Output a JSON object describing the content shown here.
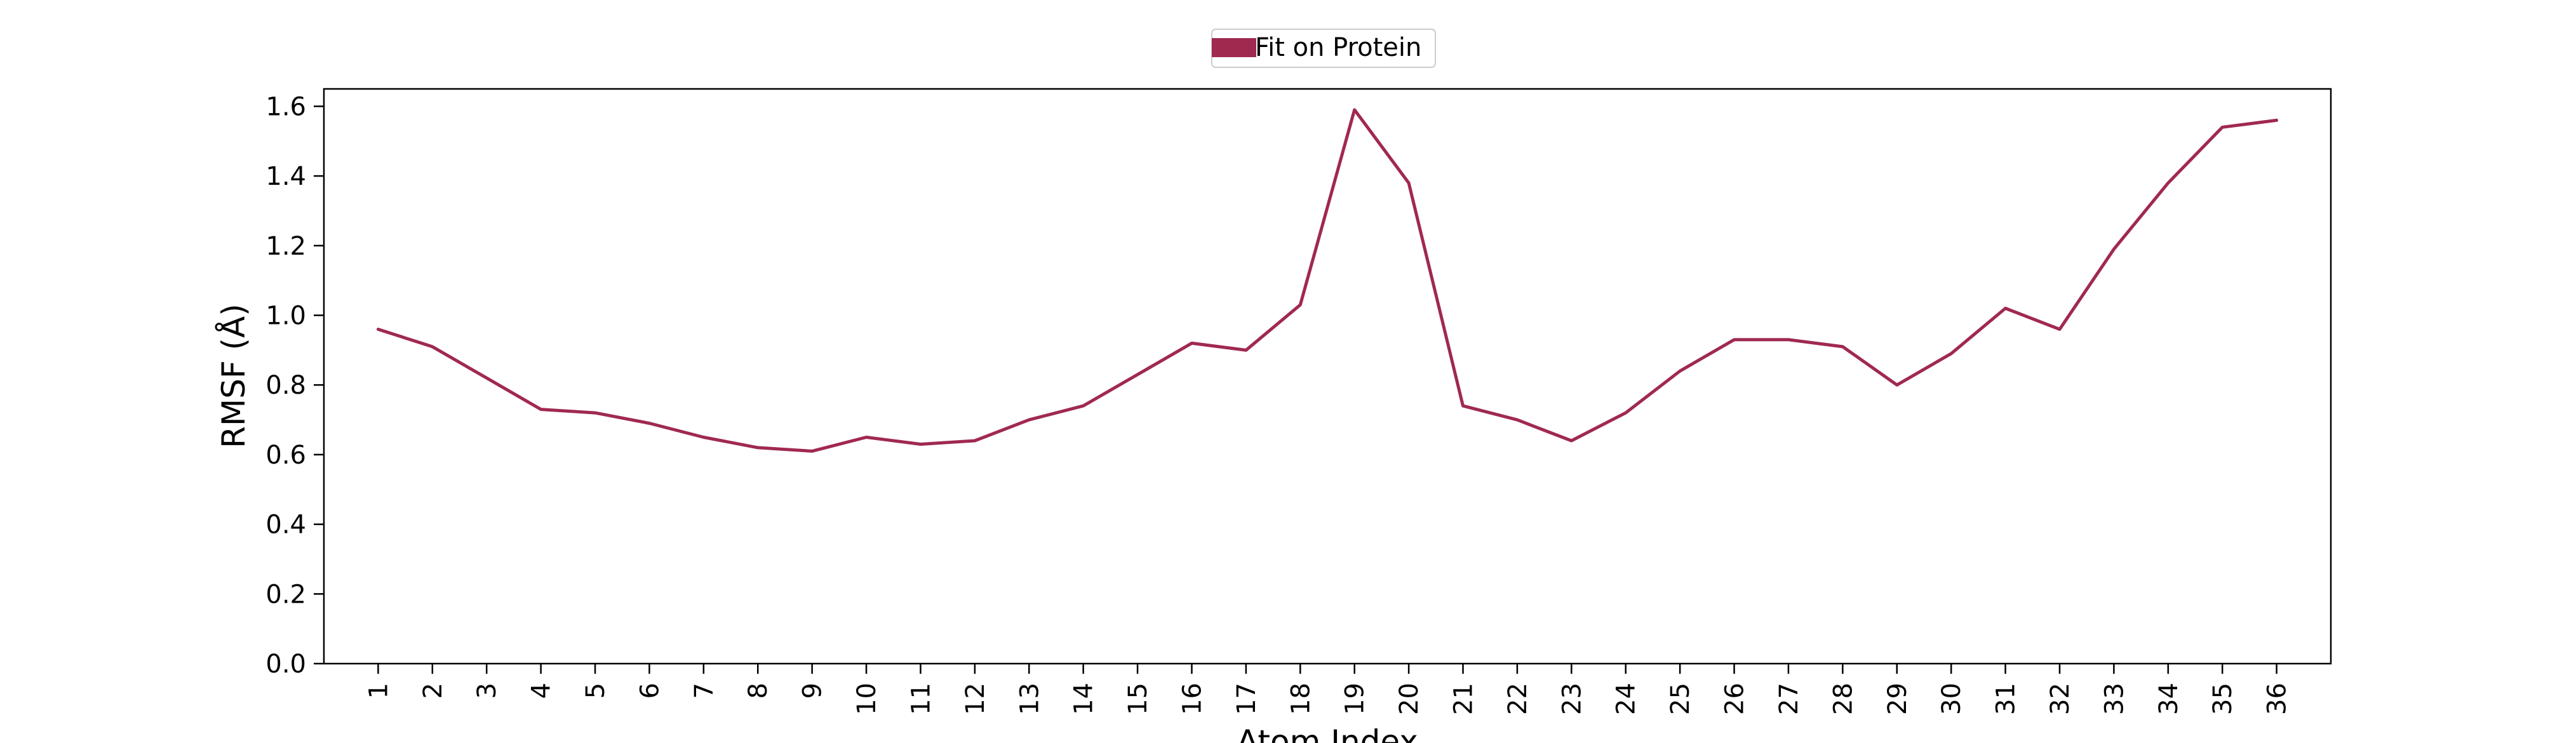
{
  "chart_data": {
    "type": "line",
    "xlabel": "Atom Index",
    "ylabel": "RMSF (Å)",
    "categories": [
      "1",
      "2",
      "3",
      "4",
      "5",
      "6",
      "7",
      "8",
      "9",
      "10",
      "11",
      "12",
      "13",
      "14",
      "15",
      "16",
      "17",
      "18",
      "19",
      "20",
      "21",
      "22",
      "23",
      "24",
      "25",
      "26",
      "27",
      "28",
      "29",
      "30",
      "31",
      "32",
      "33",
      "34",
      "35",
      "36"
    ],
    "x": [
      1,
      2,
      3,
      4,
      5,
      6,
      7,
      8,
      9,
      10,
      11,
      12,
      13,
      14,
      15,
      16,
      17,
      18,
      19,
      20,
      21,
      22,
      23,
      24,
      25,
      26,
      27,
      28,
      29,
      30,
      31,
      32,
      33,
      34,
      35,
      36
    ],
    "series": [
      {
        "name": "Fit on Protein",
        "color": "#a0294f",
        "values": [
          0.96,
          0.91,
          0.82,
          0.73,
          0.72,
          0.69,
          0.65,
          0.62,
          0.61,
          0.65,
          0.63,
          0.64,
          0.7,
          0.74,
          0.83,
          0.92,
          0.9,
          1.03,
          1.59,
          1.38,
          0.74,
          0.7,
          0.64,
          0.72,
          0.84,
          0.93,
          0.93,
          0.91,
          0.8,
          0.89,
          1.02,
          0.96,
          1.19,
          1.38,
          1.54,
          1.56
        ]
      }
    ],
    "ylim": [
      0.0,
      1.65
    ],
    "xlim": [
      0,
      37
    ],
    "yticks": [
      "0.0",
      "0.2",
      "0.4",
      "0.6",
      "0.8",
      "1.0",
      "1.2",
      "1.4",
      "1.6"
    ],
    "grid": false,
    "legend_position": "top-center"
  }
}
